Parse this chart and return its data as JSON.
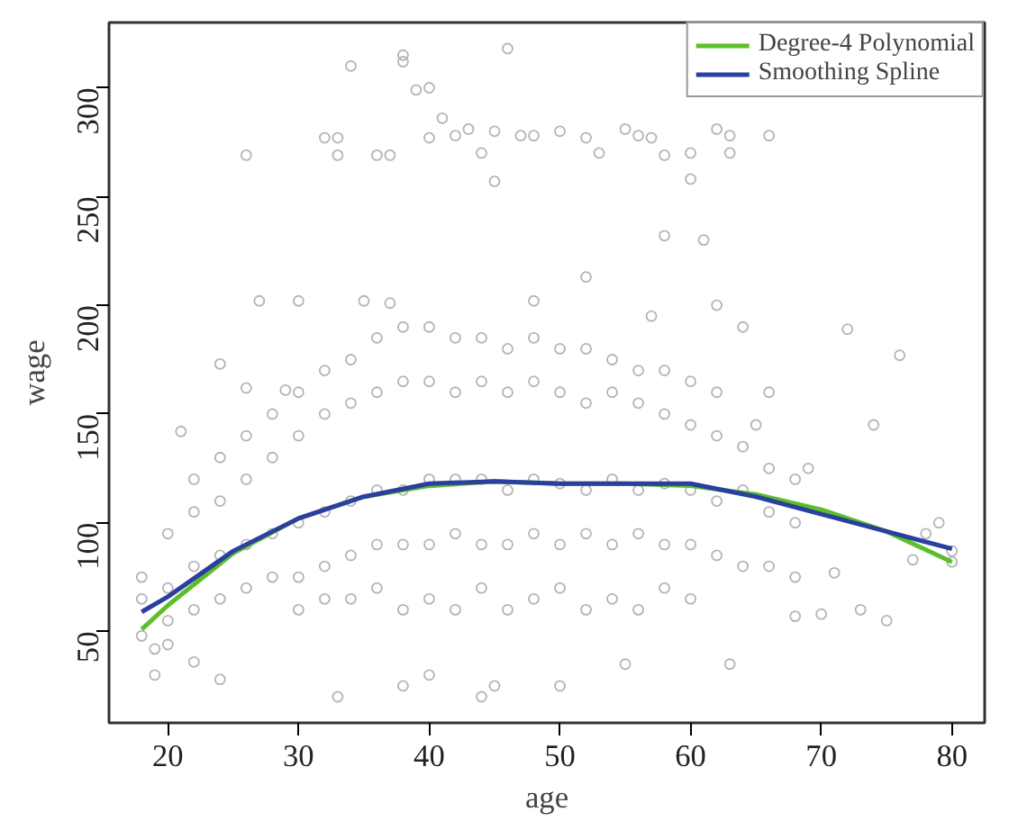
{
  "chart_data": {
    "type": "line",
    "xlabel": "age",
    "ylabel": "wage",
    "xlim": [
      15.5,
      82.5
    ],
    "ylim": [
      8,
      330
    ],
    "xticks": [
      20,
      30,
      40,
      50,
      60,
      70,
      80
    ],
    "yticks": [
      50,
      100,
      150,
      200,
      250,
      300
    ],
    "legend": "top right",
    "marker": "none",
    "line_style": "solid",
    "series": [
      {
        "type": "scatter",
        "marker": "circle",
        "color": "#b4b4b4",
        "x": [
          26,
          32,
          33,
          33,
          34,
          36,
          37,
          38,
          38,
          39,
          40,
          41,
          40,
          42,
          43,
          44,
          45,
          45,
          46,
          47,
          48,
          50,
          52,
          53,
          55,
          56,
          58,
          60,
          60,
          61,
          62,
          63,
          66,
          63,
          57,
          19,
          19,
          20,
          21,
          22,
          24,
          24,
          26,
          27,
          29,
          30,
          33,
          35,
          37,
          38,
          40,
          45,
          48,
          52,
          57,
          62,
          58,
          64,
          66,
          72,
          76,
          77,
          78,
          80,
          80,
          74,
          70,
          68,
          75,
          71,
          79,
          69,
          65,
          63,
          55,
          50,
          44,
          73,
          18,
          18,
          18,
          20,
          20,
          20,
          22,
          22,
          22,
          22,
          24,
          24,
          24,
          24,
          26,
          26,
          26,
          26,
          28,
          28,
          28,
          28,
          30,
          30,
          30,
          30,
          30,
          32,
          32,
          32,
          32,
          32,
          34,
          34,
          34,
          34,
          34,
          36,
          36,
          36,
          36,
          36,
          38,
          38,
          38,
          38,
          38,
          40,
          40,
          40,
          40,
          40,
          42,
          42,
          42,
          42,
          42,
          44,
          44,
          44,
          44,
          44,
          46,
          46,
          46,
          46,
          46,
          48,
          48,
          48,
          48,
          48,
          50,
          50,
          50,
          50,
          50,
          52,
          52,
          52,
          52,
          52,
          54,
          54,
          54,
          54,
          54,
          56,
          56,
          56,
          56,
          56,
          58,
          58,
          58,
          58,
          58,
          60,
          60,
          60,
          60,
          60,
          62,
          62,
          62,
          62,
          64,
          64,
          64,
          66,
          66,
          66,
          68,
          68,
          68
        ],
        "values": [
          269,
          277,
          277,
          269,
          310,
          269,
          269,
          315,
          312,
          299,
          300,
          286,
          277,
          278,
          281,
          270,
          257,
          280,
          318,
          278,
          278,
          280,
          277,
          270,
          281,
          278,
          269,
          270,
          258,
          230,
          281,
          278,
          278,
          270,
          277,
          42,
          30,
          44,
          142,
          36,
          173,
          28,
          162,
          202,
          161,
          202,
          20,
          202,
          201,
          25,
          30,
          25,
          202,
          213,
          195,
          200,
          232,
          190,
          160,
          189,
          177,
          83,
          95,
          87,
          82,
          145,
          58,
          57,
          55,
          77,
          100,
          125,
          145,
          35,
          35,
          25,
          20,
          60,
          65,
          75,
          48,
          70,
          95,
          55,
          80,
          105,
          60,
          120,
          85,
          110,
          65,
          130,
          90,
          120,
          70,
          140,
          95,
          130,
          75,
          150,
          100,
          140,
          75,
          160,
          60,
          105,
          150,
          80,
          170,
          65,
          110,
          155,
          85,
          175,
          65,
          115,
          160,
          90,
          185,
          70,
          115,
          165,
          90,
          190,
          60,
          120,
          165,
          90,
          190,
          65,
          120,
          160,
          95,
          185,
          60,
          120,
          165,
          90,
          185,
          70,
          115,
          160,
          90,
          180,
          60,
          120,
          165,
          95,
          185,
          65,
          118,
          160,
          90,
          180,
          70,
          115,
          155,
          95,
          180,
          60,
          120,
          160,
          90,
          175,
          65,
          115,
          155,
          95,
          170,
          60,
          118,
          150,
          90,
          170,
          70,
          115,
          145,
          90,
          165,
          65,
          110,
          140,
          85,
          160,
          115,
          135,
          80,
          105,
          125,
          80,
          100,
          120,
          75
        ]
      },
      {
        "name": "Degree-4 Polynomial",
        "color": "#5cbf2a",
        "x": [
          18,
          20,
          25,
          30,
          35,
          40,
          45,
          50,
          55,
          60,
          65,
          70,
          75,
          80
        ],
        "values": [
          51,
          62,
          86,
          102,
          112,
          117,
          119,
          118,
          118,
          117,
          113,
          106,
          96,
          82
        ]
      },
      {
        "name": "Smoothing Spline",
        "color": "#2a3f9e",
        "x": [
          18,
          20,
          25,
          30,
          35,
          40,
          45,
          50,
          55,
          60,
          65,
          70,
          75,
          80
        ],
        "values": [
          59,
          66,
          87,
          102,
          112,
          118,
          119,
          118,
          118,
          118,
          112,
          104,
          96,
          88
        ]
      }
    ]
  }
}
